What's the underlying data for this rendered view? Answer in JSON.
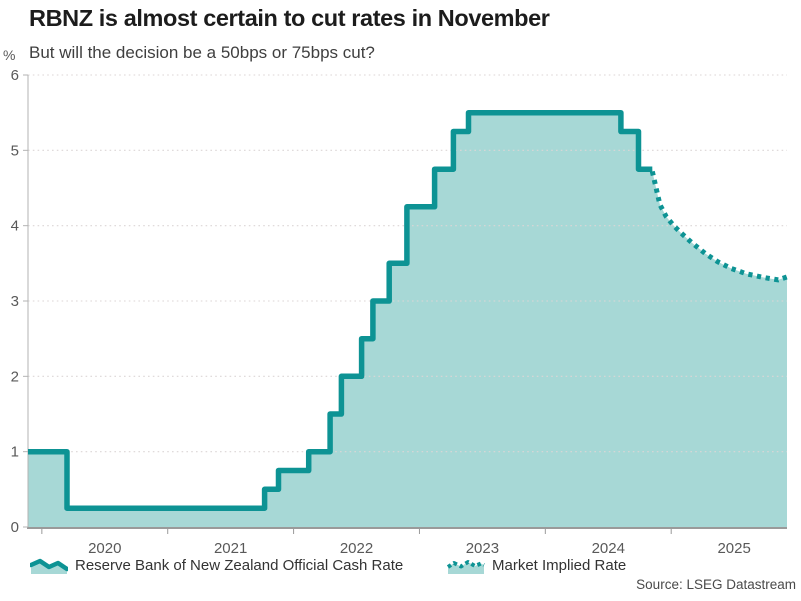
{
  "header": {
    "title": "RBNZ is almost certain to cut rates in November",
    "subtitle": "But will the decision be a 50bps or 75bps cut?"
  },
  "legend": {
    "items": [
      {
        "label": "Reserve Bank of New Zealand Official Cash Rate",
        "style": "solid"
      },
      {
        "label": "Market Implied Rate",
        "style": "dotted"
      }
    ]
  },
  "source": "Source: LSEG Datastream",
  "colors": {
    "line": "#0d9394",
    "fill": "#a7d8d6",
    "grid": "#dcd6d6",
    "axis": "#9a9a9a",
    "axis_y": "#b3b3b3",
    "tick_text": "#595959",
    "title_text": "#1c1c1c",
    "subtitle_text": "#3f3f3f",
    "legend_text": "#333333",
    "source_text": "#4a4a4a"
  },
  "chart_data": {
    "type": "area",
    "subtype": "step-line history with dotted market-implied projection",
    "title": "RBNZ is almost certain to cut rates in November",
    "subtitle": "But will the decision be a 50bps or 75bps cut?",
    "xlabel": "",
    "ylabel": "%",
    "x_range": [
      2019.89,
      2025.92
    ],
    "ylim": [
      0,
      6
    ],
    "x_ticks": [
      2020,
      2021,
      2022,
      2023,
      2024,
      2025
    ],
    "y_ticks": [
      0,
      1,
      2,
      3,
      4,
      5,
      6
    ],
    "grid": "horizontal-dotted",
    "legend_position": "bottom",
    "series": [
      {
        "name": "Reserve Bank of New Zealand Official Cash Rate",
        "style": "solid-step",
        "points": [
          [
            2019.89,
            1.0
          ],
          [
            2020.2,
            0.25
          ],
          [
            2021.77,
            0.5
          ],
          [
            2021.88,
            0.75
          ],
          [
            2022.12,
            1.0
          ],
          [
            2022.29,
            1.5
          ],
          [
            2022.38,
            2.0
          ],
          [
            2022.54,
            2.5
          ],
          [
            2022.63,
            3.0
          ],
          [
            2022.76,
            3.5
          ],
          [
            2022.9,
            4.25
          ],
          [
            2023.12,
            4.75
          ],
          [
            2023.27,
            5.25
          ],
          [
            2023.39,
            5.5
          ],
          [
            2024.6,
            5.25
          ],
          [
            2024.74,
            4.75
          ],
          [
            2024.85,
            4.75
          ]
        ]
      },
      {
        "name": "Market Implied Rate",
        "style": "dotted-line",
        "points": [
          [
            2024.85,
            4.72
          ],
          [
            2024.88,
            4.5
          ],
          [
            2024.91,
            4.28
          ],
          [
            2024.96,
            4.12
          ],
          [
            2025.02,
            4.0
          ],
          [
            2025.08,
            3.9
          ],
          [
            2025.16,
            3.78
          ],
          [
            2025.27,
            3.63
          ],
          [
            2025.37,
            3.52
          ],
          [
            2025.48,
            3.43
          ],
          [
            2025.6,
            3.36
          ],
          [
            2025.74,
            3.31
          ],
          [
            2025.85,
            3.28
          ],
          [
            2025.92,
            3.32
          ]
        ]
      }
    ]
  }
}
